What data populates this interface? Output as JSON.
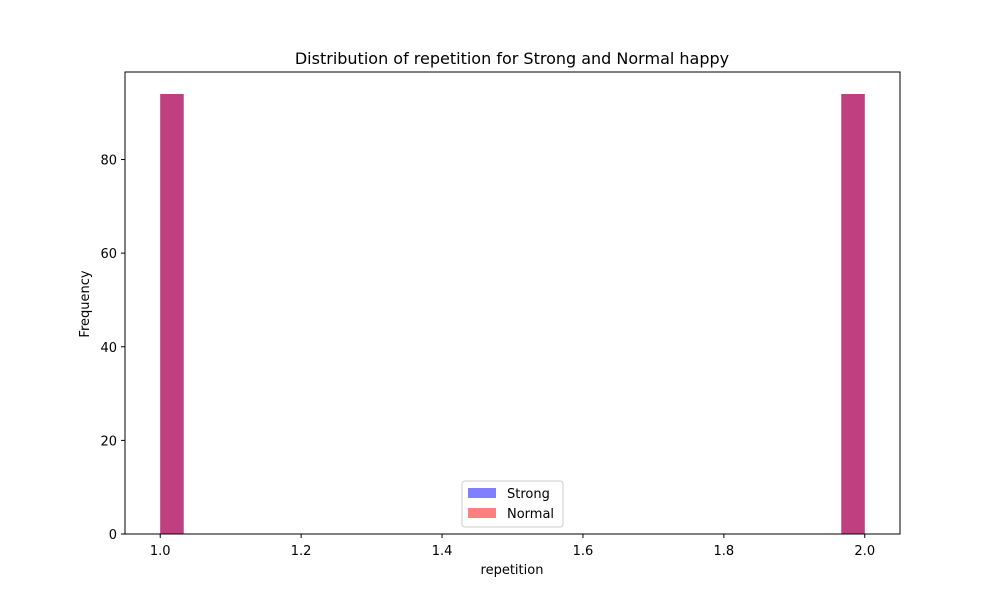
{
  "chart_data": {
    "type": "bar",
    "title": "Distribution of repetition for Strong and Normal happy",
    "xlabel": "repetition",
    "ylabel": "Frequency",
    "xlim": [
      0.95,
      2.05
    ],
    "ylim": [
      0,
      98.7
    ],
    "xticks": [
      1.0,
      1.2,
      1.4,
      1.6,
      1.8,
      2.0
    ],
    "xtick_labels": [
      "1.0",
      "1.2",
      "1.4",
      "1.6",
      "1.8",
      "2.0"
    ],
    "yticks": [
      0,
      20,
      40,
      60,
      80
    ],
    "ytick_labels": [
      "0",
      "20",
      "40",
      "60",
      "80"
    ],
    "grid": false,
    "legend_position": "lower center",
    "series": [
      {
        "name": "Strong",
        "color": "#0000ff",
        "alpha": 0.5,
        "bins": [
          {
            "start": 1.0,
            "end": 1.0333,
            "count": 94
          },
          {
            "start": 1.9667,
            "end": 2.0,
            "count": 94
          }
        ]
      },
      {
        "name": "Normal",
        "color": "#ff0000",
        "alpha": 0.5,
        "bins": [
          {
            "start": 1.0,
            "end": 1.0333,
            "count": 94
          },
          {
            "start": 1.9667,
            "end": 2.0,
            "count": 94
          }
        ]
      }
    ]
  }
}
